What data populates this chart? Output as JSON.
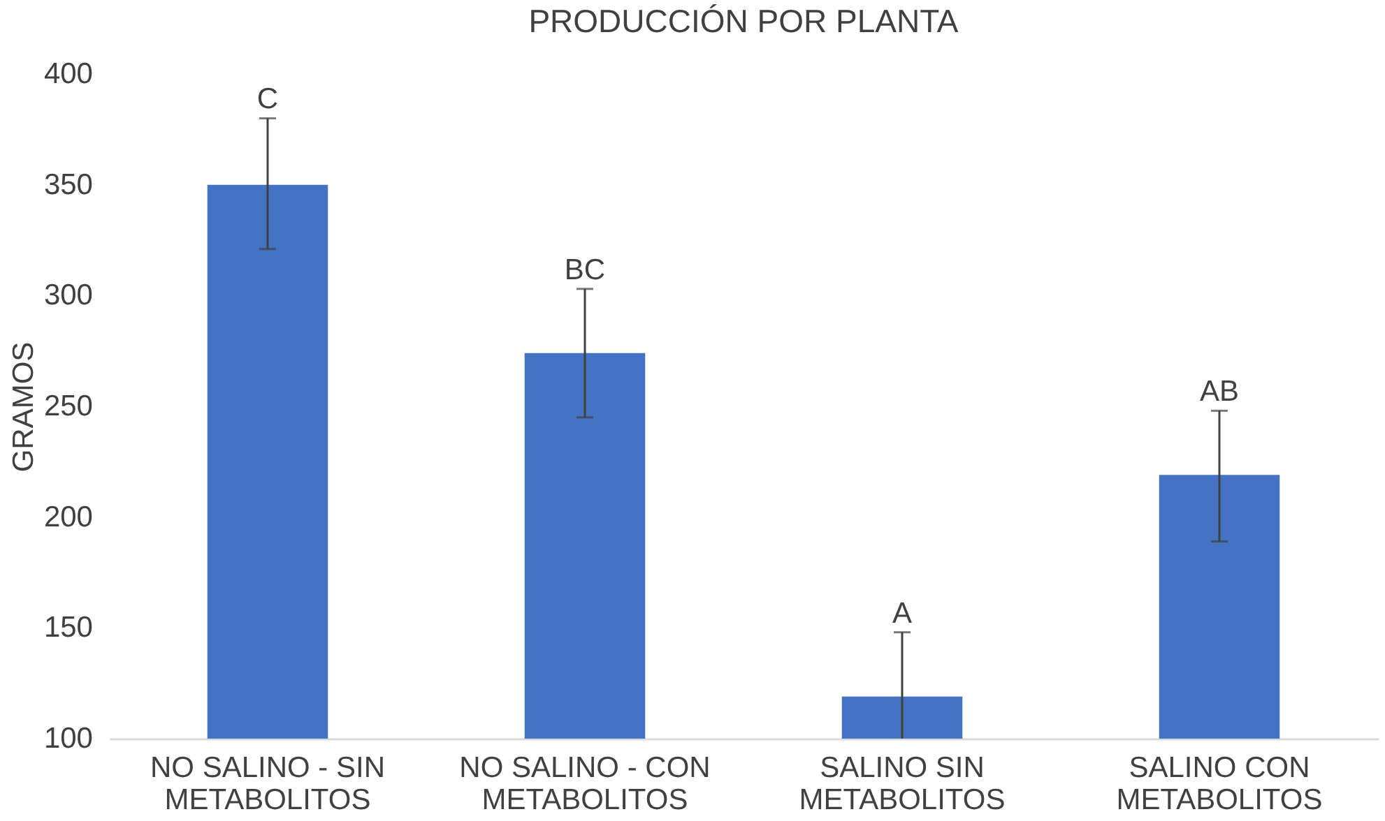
{
  "chart_data": {
    "type": "bar",
    "title": "PRODUCCIÓN POR PLANTA",
    "ylabel": "GRAMOS",
    "categories": [
      "NO SALINO - SIN\nMETABOLITOS",
      "NO SALINO - CON\nMETABOLITOS",
      "SALINO SIN\nMETABOLITOS",
      "SALINO CON\nMETABOLITOS"
    ],
    "values": [
      350,
      274,
      119,
      219
    ],
    "color": "#4472c4",
    "errors": [
      [
        321,
        380
      ],
      [
        245,
        303
      ],
      [
        100,
        148
      ],
      [
        189,
        248
      ]
    ],
    "annotations": [
      "C",
      "BC",
      "A",
      "AB"
    ],
    "ylim": [
      100,
      400
    ],
    "yticks": [
      100,
      150,
      200,
      250,
      300,
      350,
      400
    ],
    "grid": false
  }
}
